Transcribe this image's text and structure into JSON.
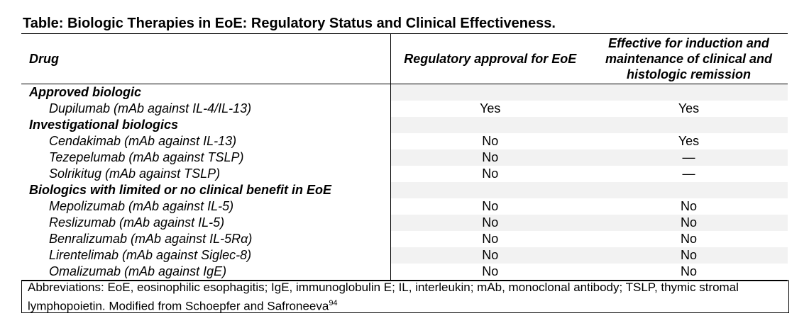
{
  "title": "Table: Biologic Therapies in EoE: Regulatory Status and Clinical Effectiveness.",
  "table": {
    "headers": [
      "Drug",
      "Regulatory approval for EoE",
      "Effective for induction and maintenance of clinical and histologic remission"
    ],
    "rows": [
      [
        "Approved biologic"
      ],
      [
        "Dupilumab (mAb against IL-4/IL-13)",
        "Yes",
        "Yes"
      ],
      [
        "Investigational biologics"
      ],
      [
        "Cendakimab (mAb against IL-13)",
        "No",
        "Yes"
      ],
      [
        "Tezepelumab (mAb against TSLP)",
        "No",
        "—"
      ],
      [
        "Solrikitug (mAb against TSLP)",
        "No",
        "—"
      ],
      [
        "Biologics with limited or no clinical benefit in EoE"
      ],
      [
        "Mepolizumab (mAb against IL-5)",
        "No",
        "No"
      ],
      [
        "Reslizumab (mAb against IL-5)",
        "No",
        "No"
      ],
      [
        "Benralizumab (mAb against IL-5Rα)",
        "No",
        "No"
      ],
      [
        "Lirentelimab (mAb against Siglec-8)",
        "No",
        "No"
      ],
      [
        "Omalizumab (mAb against IgE)",
        "No",
        "No"
      ]
    ]
  },
  "footnote": {
    "text": "Abbreviations: EoE, eosinophilic esophagitis; IgE, immunoglobulin E; IL, interleukin; mAb, monoclonal antibody; TSLP, thymic stromal lymphopoietin. Modified from Schoepfer and Safroneeva",
    "reference": "94"
  }
}
